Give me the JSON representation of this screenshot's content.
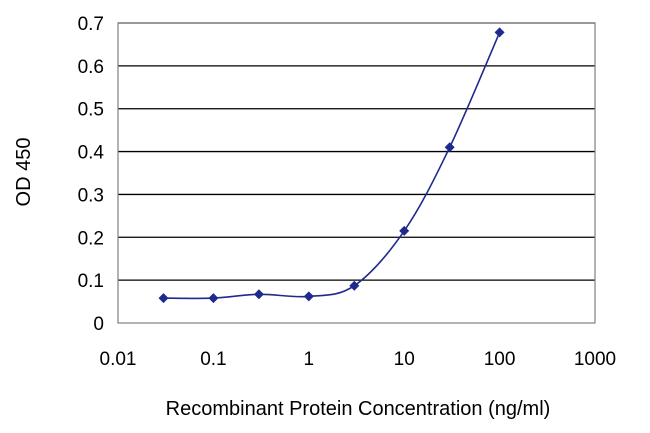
{
  "chart_data": {
    "type": "line",
    "title": "",
    "xlabel": "Recombinant Protein Concentration (ng/ml)",
    "ylabel": "OD 450",
    "x_scale": "log",
    "xlim": [
      0.01,
      1000
    ],
    "ylim": [
      0,
      0.7
    ],
    "x_ticks": [
      "0.01",
      "0.1",
      "1",
      "10",
      "100",
      "1000"
    ],
    "y_ticks": [
      "0",
      "0.1",
      "0.2",
      "0.3",
      "0.4",
      "0.5",
      "0.6",
      "0.7"
    ],
    "grid": "horizontal",
    "legend": "none",
    "series": [
      {
        "x": [
          0.03,
          0.1,
          0.3,
          1,
          3,
          10,
          30,
          100
        ],
        "y": [
          0.058,
          0.058,
          0.067,
          0.062,
          0.087,
          0.215,
          0.41,
          0.678
        ]
      }
    ]
  },
  "colors": {
    "series": "#1f2a8c",
    "grid": "#000000",
    "axis": "#808080",
    "background": "#ffffff"
  }
}
